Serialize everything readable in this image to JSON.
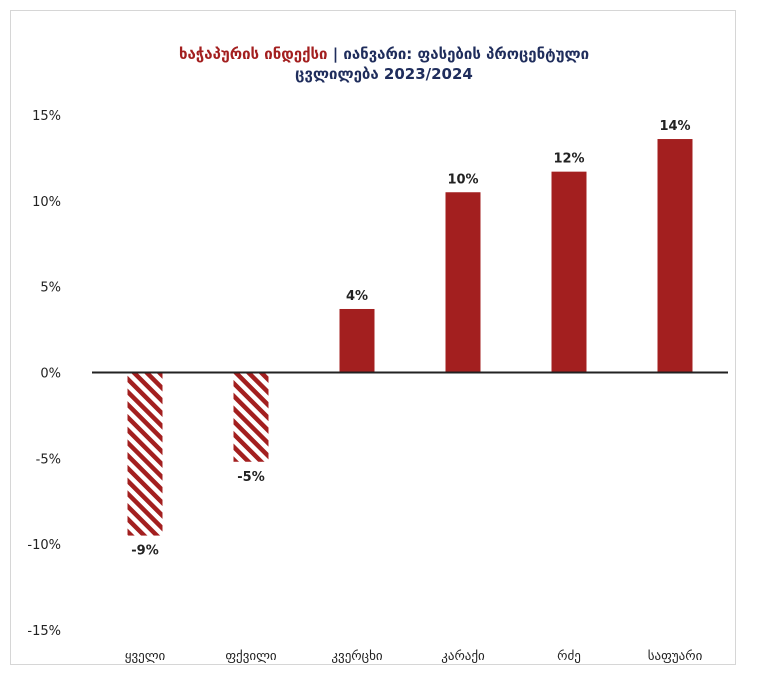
{
  "chart_data": {
    "type": "bar",
    "title_accent": "ხაჭაპურის ინდექსი",
    "title_separator": " | ",
    "title_rest_line1": "იანვარი: ფასების პროცენტული",
    "title_line2": "ცვლილება 2023/2024",
    "categories": [
      "ყველი",
      "ფქვილი",
      "კვერცხი",
      "კარაქი",
      "რძე",
      "საფუარი"
    ],
    "values": [
      -9.5,
      -5.2,
      3.7,
      10.5,
      11.7,
      13.6
    ],
    "data_labels": [
      "-9%",
      "-5%",
      "4%",
      "10%",
      "12%",
      "14%"
    ],
    "negative_style": "hatched",
    "ylim": [
      -15,
      15
    ],
    "yticks": [
      15,
      10,
      5,
      0,
      -5,
      -10,
      -15
    ],
    "ytick_labels": [
      "15%",
      "10%",
      "5%",
      "0%",
      "-5%",
      "-10%",
      "-15%"
    ],
    "grid": false,
    "colors": {
      "bar": "#a31f1f",
      "accent": "#a31f1f",
      "title": "#1f2d5c",
      "axis": "#222222"
    }
  }
}
